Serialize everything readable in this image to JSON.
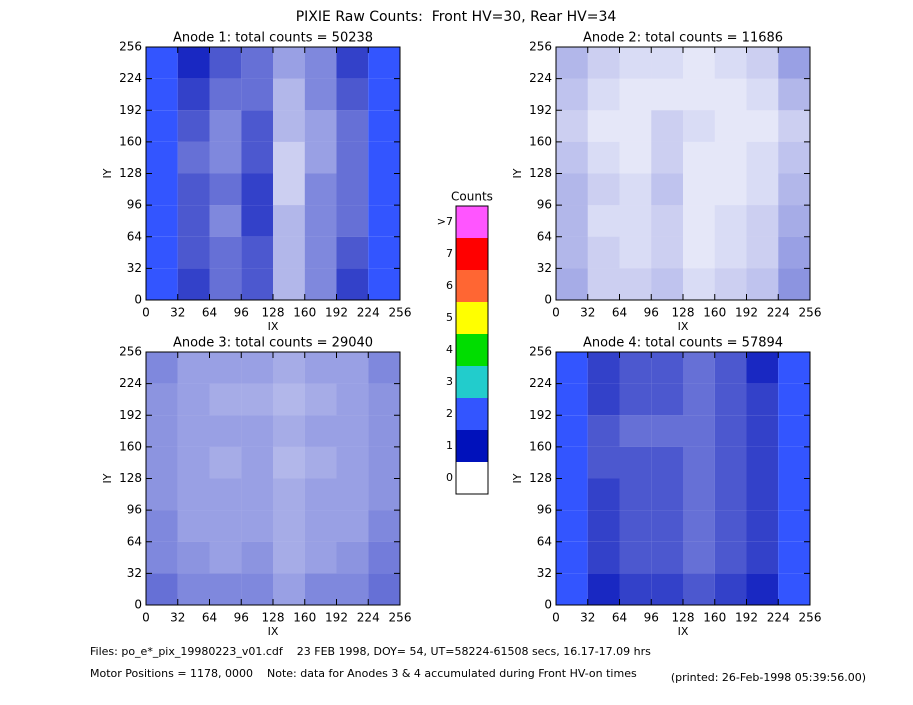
{
  "title": "PIXIE Raw Counts:  Front HV=30, Rear HV=34",
  "chart_data": [
    {
      "type": "heatmap",
      "title": "Anode 1: total counts = 50238",
      "xlabel": "IX",
      "ylabel": "IY",
      "xlim": [
        0,
        256
      ],
      "ylim": [
        0,
        256
      ],
      "xticks": [
        0,
        32,
        64,
        96,
        128,
        160,
        192,
        224,
        256
      ],
      "yticks": [
        0,
        32,
        64,
        96,
        128,
        160,
        192,
        224,
        256
      ],
      "z": [
        [
          1.4,
          0.8,
          0.6,
          0.7,
          0.3,
          0.5,
          0.8,
          1.3
        ],
        [
          1.3,
          0.7,
          0.6,
          0.7,
          0.3,
          0.5,
          0.7,
          1.2
        ],
        [
          1.3,
          0.7,
          0.5,
          0.8,
          0.3,
          0.5,
          0.6,
          1.1
        ],
        [
          1.4,
          0.7,
          0.6,
          0.8,
          0.2,
          0.5,
          0.6,
          1.1
        ],
        [
          1.3,
          0.6,
          0.5,
          0.7,
          0.2,
          0.4,
          0.6,
          1.0
        ],
        [
          1.2,
          0.7,
          0.5,
          0.7,
          0.3,
          0.4,
          0.6,
          1.0
        ],
        [
          1.3,
          0.8,
          0.6,
          0.6,
          0.3,
          0.5,
          0.7,
          1.1
        ],
        [
          1.4,
          0.9,
          0.7,
          0.6,
          0.4,
          0.5,
          0.8,
          1.3
        ]
      ]
    },
    {
      "type": "heatmap",
      "title": "Anode 2: total counts = 11686",
      "xlabel": "IX",
      "ylabel": "IY",
      "xlim": [
        0,
        256
      ],
      "ylim": [
        0,
        256
      ],
      "xticks": [
        0,
        32,
        64,
        96,
        128,
        160,
        192,
        224,
        256
      ],
      "yticks": [
        0,
        32,
        64,
        96,
        128,
        160,
        192,
        224,
        256
      ],
      "z": [
        [
          0.35,
          0.2,
          0.2,
          0.25,
          0.15,
          0.2,
          0.25,
          0.45
        ],
        [
          0.3,
          0.2,
          0.15,
          0.2,
          0.1,
          0.15,
          0.2,
          0.4
        ],
        [
          0.3,
          0.15,
          0.15,
          0.2,
          0.1,
          0.15,
          0.2,
          0.35
        ],
        [
          0.3,
          0.2,
          0.15,
          0.25,
          0.1,
          0.1,
          0.15,
          0.3
        ],
        [
          0.25,
          0.15,
          0.1,
          0.2,
          0.1,
          0.1,
          0.15,
          0.25
        ],
        [
          0.2,
          0.1,
          0.1,
          0.2,
          0.15,
          0.1,
          0.1,
          0.2
        ],
        [
          0.25,
          0.15,
          0.1,
          0.1,
          0.1,
          0.1,
          0.15,
          0.3
        ],
        [
          0.3,
          0.2,
          0.15,
          0.15,
          0.1,
          0.15,
          0.2,
          0.4
        ]
      ]
    },
    {
      "type": "heatmap",
      "title": "Anode 3: total counts = 29040",
      "xlabel": "IX",
      "ylabel": "IY",
      "xlim": [
        0,
        256
      ],
      "ylim": [
        0,
        256
      ],
      "xticks": [
        0,
        32,
        64,
        96,
        128,
        160,
        192,
        224,
        256
      ],
      "yticks": [
        0,
        32,
        64,
        96,
        128,
        160,
        192,
        224,
        256
      ],
      "z": [
        [
          0.6,
          0.5,
          0.5,
          0.5,
          0.4,
          0.5,
          0.5,
          0.6
        ],
        [
          0.5,
          0.45,
          0.4,
          0.45,
          0.35,
          0.4,
          0.45,
          0.55
        ],
        [
          0.5,
          0.4,
          0.4,
          0.4,
          0.35,
          0.4,
          0.4,
          0.5
        ],
        [
          0.45,
          0.4,
          0.4,
          0.4,
          0.35,
          0.4,
          0.4,
          0.45
        ],
        [
          0.45,
          0.4,
          0.35,
          0.4,
          0.3,
          0.35,
          0.4,
          0.45
        ],
        [
          0.45,
          0.4,
          0.4,
          0.4,
          0.35,
          0.4,
          0.4,
          0.45
        ],
        [
          0.45,
          0.4,
          0.35,
          0.35,
          0.3,
          0.35,
          0.4,
          0.45
        ],
        [
          0.5,
          0.4,
          0.4,
          0.4,
          0.35,
          0.4,
          0.4,
          0.5
        ]
      ]
    },
    {
      "type": "heatmap",
      "title": "Anode 4: total counts = 57894",
      "xlabel": "IX",
      "ylabel": "IY",
      "xlim": [
        0,
        256
      ],
      "ylim": [
        0,
        256
      ],
      "xticks": [
        0,
        32,
        64,
        96,
        128,
        160,
        192,
        224,
        256
      ],
      "yticks": [
        0,
        32,
        64,
        96,
        128,
        160,
        192,
        224,
        256
      ],
      "z": [
        [
          1.5,
          0.9,
          0.8,
          0.8,
          0.7,
          0.8,
          0.9,
          1.6
        ],
        [
          1.4,
          0.8,
          0.7,
          0.7,
          0.6,
          0.7,
          0.8,
          1.5
        ],
        [
          1.4,
          0.8,
          0.7,
          0.7,
          0.6,
          0.7,
          0.8,
          1.5
        ],
        [
          1.3,
          0.8,
          0.7,
          0.7,
          0.6,
          0.7,
          0.8,
          1.4
        ],
        [
          1.3,
          0.7,
          0.7,
          0.7,
          0.6,
          0.7,
          0.8,
          1.4
        ],
        [
          1.3,
          0.7,
          0.6,
          0.6,
          0.6,
          0.7,
          0.8,
          1.4
        ],
        [
          1.3,
          0.8,
          0.7,
          0.7,
          0.6,
          0.7,
          0.8,
          1.5
        ],
        [
          1.4,
          0.8,
          0.7,
          0.7,
          0.6,
          0.7,
          0.9,
          1.6
        ]
      ]
    }
  ],
  "colorbar": {
    "title": "Counts",
    "ticks": [
      0,
      1,
      2,
      3,
      4,
      5,
      6,
      7,
      {
        "value": 8,
        "label": ">7"
      }
    ],
    "colors": [
      "#ffffff",
      "#0011bb",
      "#3355ff",
      "#22cccc",
      "#00dd00",
      "#ffff00",
      "#ff6633",
      "#ff0000",
      "#ff55ff"
    ]
  },
  "footer": {
    "files": "Files: po_e*_pix_19980223_v01.cdf    23 FEB 1998, DOY= 54, UT=58224-61508 secs, 16.17-17.09 hrs",
    "motor": "Motor Positions = 1178, 0000    Note: data for Anodes 3 & 4 accumulated during Front HV-on times",
    "printed": "(printed: 26-Feb-1998 05:39:56.00)"
  }
}
